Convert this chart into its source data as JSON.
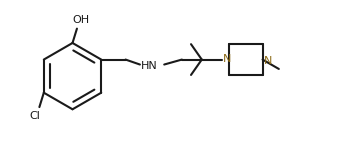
{
  "bg_color": "#ffffff",
  "line_color": "#1a1a1a",
  "n_color": "#8B6914",
  "text_color": "#1a1a1a",
  "line_width": 1.5,
  "font_size": 7.5,
  "figsize": [
    3.55,
    1.6
  ],
  "dpi": 100,
  "oh_label": "OH",
  "cl_label": "Cl",
  "hn_label": "HN",
  "n1_label": "N",
  "n2_label": "N"
}
